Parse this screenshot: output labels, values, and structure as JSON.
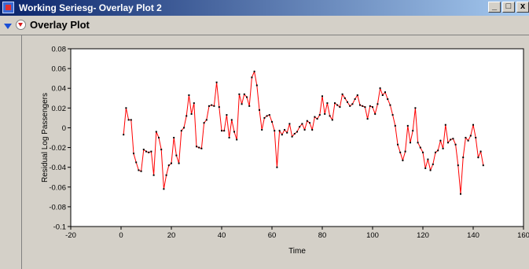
{
  "window": {
    "title": "Working Seriesg- Overlay Plot 2"
  },
  "panel": {
    "title": "Overlay Plot"
  },
  "icons": {
    "app": "chart-window-icon",
    "disclosure": "disclosure-triangle-icon",
    "menu": "red-triangle-menu-icon"
  },
  "window_buttons": {
    "minimize": "_",
    "maximize": "□",
    "close": "x"
  },
  "colors": {
    "line": "#ff0000",
    "marker": "#000000",
    "titlebar_start": "#0a246a",
    "titlebar_end": "#a6caf0"
  },
  "chart_data": {
    "type": "line",
    "title": "",
    "xlabel": "Time",
    "ylabel": "Residual Log Passengers",
    "xlim": [
      -20,
      160
    ],
    "ylim": [
      -0.1,
      0.08
    ],
    "xticks": [
      -20,
      0,
      20,
      40,
      60,
      80,
      100,
      120,
      140,
      160
    ],
    "xtick_labels": [
      "-20",
      "0",
      "20",
      "40",
      "60",
      "80",
      "100",
      "120",
      "140",
      "160"
    ],
    "yticks": [
      0.08,
      0.06,
      0.04,
      0.02,
      0,
      -0.02,
      -0.04,
      -0.06,
      -0.08,
      -0.1
    ],
    "ytick_labels": [
      "0.08",
      "0.06",
      "0.04",
      "0.02",
      "0",
      "-0.02",
      "-0.04",
      "-0.06",
      "-0.08",
      "-0.1"
    ],
    "grid": false,
    "series": [
      {
        "x": [
          1,
          2,
          3,
          4,
          5,
          6,
          7,
          8,
          9,
          10,
          11,
          12,
          13,
          14,
          15,
          16,
          17,
          18,
          19,
          20,
          21,
          22,
          23,
          24,
          25,
          26,
          27,
          28,
          29,
          30,
          31,
          32,
          33,
          34,
          35,
          36,
          37,
          38,
          39,
          40,
          41,
          42,
          43,
          44,
          45,
          46,
          47,
          48,
          49,
          50,
          51,
          52,
          53,
          54,
          55,
          56,
          57,
          58,
          59,
          60,
          61,
          62,
          63,
          64,
          65,
          66,
          67,
          68,
          69,
          70,
          71,
          72,
          73,
          74,
          75,
          76,
          77,
          78,
          79,
          80,
          81,
          82,
          83,
          84,
          85,
          86,
          87,
          88,
          89,
          90,
          91,
          92,
          93,
          94,
          95,
          96,
          97,
          98,
          99,
          100,
          101,
          102,
          103,
          104,
          105,
          106,
          107,
          108,
          109,
          110,
          111,
          112,
          113,
          114,
          115,
          116,
          117,
          118,
          119,
          120,
          121,
          122,
          123,
          124,
          125,
          126,
          127,
          128,
          129,
          130,
          131,
          132,
          133,
          134,
          135,
          136,
          137,
          138,
          139,
          140,
          141,
          142,
          143,
          144
        ],
        "values": [
          -0.007,
          0.02,
          0.008,
          0.008,
          -0.026,
          -0.035,
          -0.043,
          -0.044,
          -0.022,
          -0.024,
          -0.025,
          -0.024,
          -0.048,
          -0.004,
          -0.01,
          -0.022,
          -0.062,
          -0.048,
          -0.038,
          -0.036,
          -0.01,
          -0.028,
          -0.036,
          -0.003,
          0.0,
          0.012,
          0.033,
          0.014,
          0.025,
          -0.019,
          -0.02,
          -0.021,
          0.005,
          0.008,
          0.022,
          0.023,
          0.022,
          0.046,
          0.021,
          -0.003,
          -0.003,
          0.013,
          -0.01,
          0.008,
          -0.004,
          -0.012,
          0.034,
          0.024,
          0.034,
          0.031,
          0.022,
          0.051,
          0.057,
          0.043,
          0.018,
          -0.002,
          0.01,
          0.012,
          0.013,
          0.006,
          -0.003,
          -0.04,
          -0.003,
          -0.007,
          -0.002,
          -0.005,
          0.004,
          -0.009,
          -0.006,
          -0.004,
          0.001,
          0.004,
          -0.002,
          0.007,
          0.005,
          -0.002,
          0.011,
          0.009,
          0.013,
          0.032,
          0.014,
          0.025,
          0.012,
          0.008,
          0.025,
          0.023,
          0.021,
          0.034,
          0.03,
          0.026,
          0.022,
          0.024,
          0.029,
          0.033,
          0.023,
          0.022,
          0.021,
          0.009,
          0.022,
          0.021,
          0.014,
          0.024,
          0.04,
          0.033,
          0.036,
          0.029,
          0.023,
          0.013,
          0.002,
          -0.017,
          -0.025,
          -0.033,
          -0.024,
          0.002,
          -0.015,
          -0.003,
          0.02,
          -0.015,
          -0.02,
          -0.025,
          -0.041,
          -0.032,
          -0.043,
          -0.037,
          -0.025,
          -0.023,
          -0.013,
          -0.021,
          0.003,
          -0.015,
          -0.012,
          -0.011,
          -0.017,
          -0.038,
          -0.067,
          -0.03,
          -0.01,
          -0.013,
          -0.008,
          0.003,
          -0.01,
          -0.03,
          -0.024,
          -0.038
        ]
      }
    ]
  }
}
